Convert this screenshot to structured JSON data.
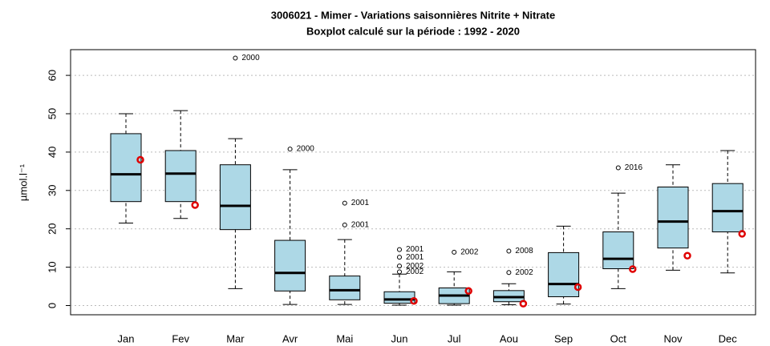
{
  "chart_data": {
    "type": "boxplot",
    "title": "3006021 - Mimer - Variations saisonnières Nitrite + Nitrate",
    "subtitle": "Boxplot calculé sur la période : 1992 - 2020",
    "y_label": "µmol.l⁻¹",
    "categories": [
      "Jan",
      "Fev",
      "Mar",
      "Avr",
      "Mai",
      "Jun",
      "Jul",
      "Aou",
      "Sep",
      "Oct",
      "Nov",
      "Dec"
    ],
    "box_color": "#add8e6",
    "boxes": [
      {
        "low": 21.5,
        "q1": 27.1,
        "median": 34.2,
        "q3": 44.8,
        "high": 50.0,
        "outliers": [],
        "outlier_labels": []
      },
      {
        "low": 22.7,
        "q1": 27.1,
        "median": 34.4,
        "q3": 40.4,
        "high": 50.8,
        "outliers": [],
        "outlier_labels": []
      },
      {
        "low": 4.4,
        "q1": 19.8,
        "median": 26.0,
        "q3": 36.7,
        "high": 43.5,
        "outliers": [
          64.5
        ],
        "outlier_labels": [
          "2000"
        ]
      },
      {
        "low": 0.3,
        "q1": 3.8,
        "median": 8.5,
        "q3": 17.0,
        "high": 35.4,
        "outliers": [
          40.8
        ],
        "outlier_labels": [
          "2000"
        ]
      },
      {
        "low": 0.3,
        "q1": 1.5,
        "median": 4.0,
        "q3": 7.7,
        "high": 17.2,
        "outliers": [
          26.7,
          21.0
        ],
        "outlier_labels": [
          "2001",
          "2001"
        ]
      },
      {
        "low": 0.1,
        "q1": 0.6,
        "median": 1.6,
        "q3": 3.6,
        "high": 8.2,
        "outliers": [
          14.6,
          12.6,
          10.3,
          8.8
        ],
        "outlier_labels": [
          "2001",
          "2001",
          "2002",
          "2002"
        ]
      },
      {
        "low": 0.1,
        "q1": 0.5,
        "median": 2.6,
        "q3": 4.6,
        "high": 8.8,
        "outliers": [
          13.9
        ],
        "outlier_labels": [
          "2002"
        ]
      },
      {
        "low": 0.2,
        "q1": 1.0,
        "median": 2.2,
        "q3": 3.9,
        "high": 5.7,
        "outliers": [
          14.2,
          8.6
        ],
        "outlier_labels": [
          "2008",
          "2002"
        ]
      },
      {
        "low": 0.4,
        "q1": 2.3,
        "median": 5.6,
        "q3": 13.8,
        "high": 20.7,
        "outliers": [],
        "outlier_labels": []
      },
      {
        "low": 4.4,
        "q1": 9.6,
        "median": 12.2,
        "q3": 19.2,
        "high": 29.3,
        "outliers": [
          35.9
        ],
        "outlier_labels": [
          "2016"
        ]
      },
      {
        "low": 9.2,
        "q1": 15.0,
        "median": 21.9,
        "q3": 30.9,
        "high": 36.7,
        "outliers": [],
        "outlier_labels": []
      },
      {
        "low": 8.5,
        "q1": 19.2,
        "median": 24.6,
        "q3": 31.8,
        "high": 40.4,
        "outliers": [],
        "outlier_labels": []
      }
    ],
    "points": {
      "color": "#e00000",
      "values": [
        38.0,
        26.2,
        null,
        null,
        null,
        1.2,
        3.8,
        0.5,
        4.8,
        9.5,
        13.0,
        18.7
      ]
    },
    "ylim": [
      -2.4,
      66.7
    ],
    "yticks": [
      0,
      10,
      20,
      30,
      40,
      50,
      60
    ],
    "grid": true
  }
}
